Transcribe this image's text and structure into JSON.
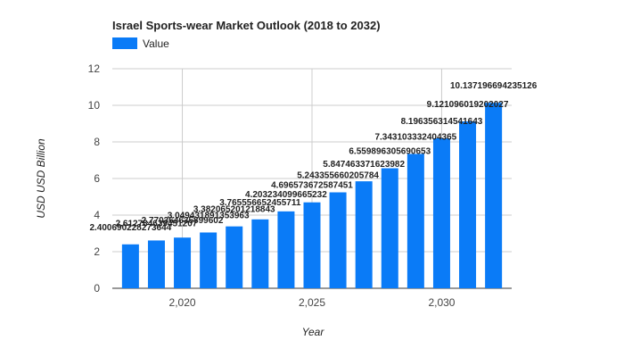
{
  "chart_data": {
    "type": "bar",
    "title": "Israel Sports-wear Market Outlook (2018 to 2032)",
    "xlabel": "Year",
    "ylabel": "USD USD Billion",
    "legend": {
      "entries": [
        "Value"
      ],
      "placement": "top-left"
    },
    "grid": true,
    "ylim": [
      0,
      12
    ],
    "yticks": [
      0,
      2,
      4,
      6,
      8,
      10,
      12
    ],
    "xticks": [
      2020,
      2025,
      2030
    ],
    "xtick_labels": [
      "2,020",
      "2,025",
      "2,030"
    ],
    "x": [
      2018,
      2019,
      2020,
      2021,
      2022,
      2023,
      2024,
      2025,
      2026,
      2027,
      2028,
      2029,
      2030,
      2031,
      2032
    ],
    "series": [
      {
        "name": "Value",
        "color": "#0a7bf7",
        "values": [
          2.400690228273644,
          2.612784639451207,
          2.770364635899602,
          3.049431891353963,
          3.382065201218843,
          3.765556652455711,
          4.203234099665232,
          4.696573672587451,
          5.243355660205784,
          5.847463371623982,
          6.559896305690653,
          7.343103332404365,
          8.196356314541642,
          9.121096019202026,
          10.137196694235126
        ],
        "labels": [
          "2.400690228273644",
          "2.612784639451207",
          "2.770364635899602",
          "3.049431891353963",
          "3.382065201218843",
          "3.765556652455711",
          "4.203234099665232",
          "4.696573672587451",
          "5.243355660205784",
          "5.847463371623982",
          "6.559896305690653",
          "7.343103332404365",
          "8.196356314541643",
          "9.121096019202027",
          "10.137196694235126"
        ]
      }
    ]
  }
}
